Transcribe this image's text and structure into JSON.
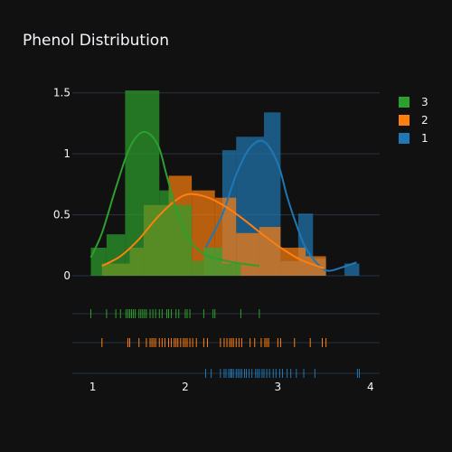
{
  "chart_data": {
    "type": "histogram",
    "title": "Phenol Distribution",
    "xlabel": "",
    "ylabel": "",
    "x_ticks": [
      1,
      2,
      3,
      4
    ],
    "y_ticks": [
      0,
      0.5,
      1,
      1.5
    ],
    "y_tick_labels": [
      "0",
      "0.5",
      "1",
      "1.5"
    ],
    "xlim": [
      0.78,
      4.1
    ],
    "ylim": [
      0,
      1.55
    ],
    "legend_position": "top-right",
    "series": [
      {
        "name": "1",
        "color": "#1f77b4",
        "bins": [
          {
            "x0": 2.2,
            "x1": 2.4,
            "y": 0.23
          },
          {
            "x0": 2.4,
            "x1": 2.55,
            "y": 1.03
          },
          {
            "x0": 2.55,
            "x1": 2.85,
            "y": 1.14
          },
          {
            "x0": 2.85,
            "x1": 3.03,
            "y": 1.34
          },
          {
            "x0": 3.03,
            "x1": 3.22,
            "y": 0.12
          },
          {
            "x0": 3.22,
            "x1": 3.38,
            "y": 0.51
          },
          {
            "x0": 3.38,
            "x1": 3.52,
            "y": 0.14
          },
          {
            "x0": 3.72,
            "x1": 3.88,
            "y": 0.1
          }
        ],
        "kde": [
          [
            2.22,
            0.23
          ],
          [
            2.4,
            0.5
          ],
          [
            2.55,
            0.83
          ],
          [
            2.7,
            1.05
          ],
          [
            2.85,
            1.1
          ],
          [
            3.0,
            0.92
          ],
          [
            3.1,
            0.65
          ],
          [
            3.2,
            0.42
          ],
          [
            3.3,
            0.23
          ],
          [
            3.45,
            0.08
          ],
          [
            3.55,
            0.04
          ],
          [
            3.7,
            0.07
          ],
          [
            3.85,
            0.11
          ]
        ],
        "rug": [
          2.22,
          2.28,
          2.38,
          2.42,
          2.44,
          2.47,
          2.49,
          2.5,
          2.52,
          2.55,
          2.57,
          2.59,
          2.61,
          2.64,
          2.66,
          2.69,
          2.72,
          2.76,
          2.78,
          2.8,
          2.83,
          2.85,
          2.88,
          2.91,
          2.95,
          2.98,
          3.02,
          3.05,
          3.1,
          3.14,
          3.2,
          3.28,
          3.4,
          3.86,
          3.88
        ]
      },
      {
        "name": "2",
        "color": "#ff7f0e",
        "bins": [
          {
            "x0": 1.1,
            "x1": 1.4,
            "y": 0.1
          },
          {
            "x0": 1.4,
            "x1": 1.55,
            "y": 0.23
          },
          {
            "x0": 1.55,
            "x1": 1.82,
            "y": 0.58
          },
          {
            "x0": 1.82,
            "x1": 2.07,
            "y": 0.82
          },
          {
            "x0": 2.07,
            "x1": 2.32,
            "y": 0.7
          },
          {
            "x0": 2.32,
            "x1": 2.55,
            "y": 0.64
          },
          {
            "x0": 2.55,
            "x1": 2.8,
            "y": 0.35
          },
          {
            "x0": 2.8,
            "x1": 3.03,
            "y": 0.4
          },
          {
            "x0": 3.03,
            "x1": 3.3,
            "y": 0.23
          },
          {
            "x0": 3.3,
            "x1": 3.52,
            "y": 0.16
          }
        ],
        "kde": [
          [
            1.1,
            0.08
          ],
          [
            1.3,
            0.16
          ],
          [
            1.5,
            0.3
          ],
          [
            1.7,
            0.48
          ],
          [
            1.9,
            0.62
          ],
          [
            2.05,
            0.67
          ],
          [
            2.25,
            0.64
          ],
          [
            2.45,
            0.56
          ],
          [
            2.65,
            0.45
          ],
          [
            2.85,
            0.33
          ],
          [
            3.05,
            0.22
          ],
          [
            3.25,
            0.13
          ],
          [
            3.5,
            0.06
          ]
        ],
        "rug": [
          1.1,
          1.38,
          1.4,
          1.5,
          1.58,
          1.62,
          1.64,
          1.66,
          1.68,
          1.72,
          1.75,
          1.78,
          1.82,
          1.85,
          1.88,
          1.9,
          1.92,
          1.95,
          1.98,
          2.0,
          2.02,
          2.05,
          2.08,
          2.12,
          2.2,
          2.24,
          2.38,
          2.42,
          2.45,
          2.48,
          2.5,
          2.52,
          2.55,
          2.58,
          2.61,
          2.7,
          2.75,
          2.82,
          2.86,
          2.88,
          2.9,
          3.0,
          3.03,
          3.18,
          3.35,
          3.48,
          3.52
        ]
      },
      {
        "name": "3",
        "color": "#2ca02c",
        "bins": [
          {
            "x0": 0.98,
            "x1": 1.15,
            "y": 0.23
          },
          {
            "x0": 1.15,
            "x1": 1.35,
            "y": 0.34
          },
          {
            "x0": 1.35,
            "x1": 1.72,
            "y": 1.52
          },
          {
            "x0": 1.72,
            "x1": 1.85,
            "y": 0.7
          },
          {
            "x0": 1.85,
            "x1": 2.07,
            "y": 0.58
          },
          {
            "x0": 2.07,
            "x1": 2.2,
            "y": 0.12
          },
          {
            "x0": 2.2,
            "x1": 2.4,
            "y": 0.23
          },
          {
            "x0": 2.4,
            "x1": 2.6,
            "y": 0.1
          }
        ],
        "kde": [
          [
            0.98,
            0.15
          ],
          [
            1.1,
            0.35
          ],
          [
            1.25,
            0.72
          ],
          [
            1.4,
            1.05
          ],
          [
            1.55,
            1.18
          ],
          [
            1.7,
            1.08
          ],
          [
            1.8,
            0.82
          ],
          [
            1.9,
            0.55
          ],
          [
            2.0,
            0.36
          ],
          [
            2.1,
            0.24
          ],
          [
            2.25,
            0.16
          ],
          [
            2.45,
            0.12
          ],
          [
            2.6,
            0.1
          ],
          [
            2.8,
            0.08
          ]
        ],
        "rug": [
          0.98,
          1.15,
          1.25,
          1.3,
          1.36,
          1.38,
          1.4,
          1.42,
          1.44,
          1.46,
          1.5,
          1.52,
          1.54,
          1.56,
          1.58,
          1.62,
          1.65,
          1.68,
          1.72,
          1.75,
          1.8,
          1.82,
          1.85,
          1.9,
          1.93,
          2.0,
          2.02,
          2.05,
          2.2,
          2.3,
          2.32,
          2.6,
          2.8
        ]
      }
    ]
  }
}
